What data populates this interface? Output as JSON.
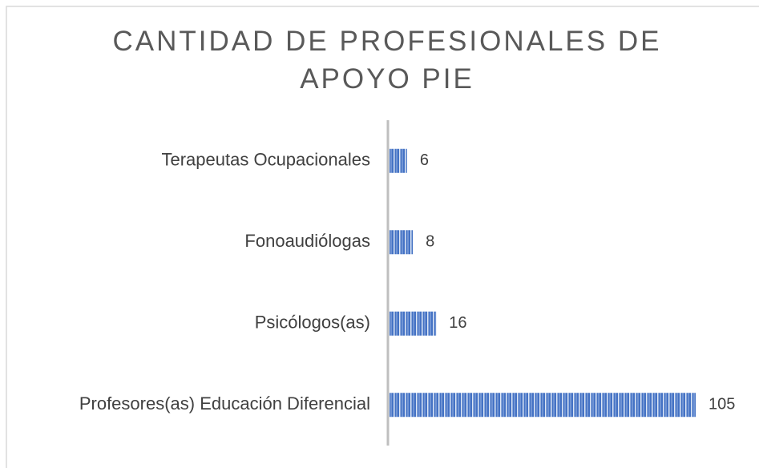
{
  "chart_data": {
    "type": "bar",
    "orientation": "horizontal",
    "title": "CANTIDAD DE PROFESIONALES DE APOYO PIE",
    "categories": [
      "Terapeutas Ocupacionales",
      "Fonoaudiólogas",
      "Psicólogos(as)",
      "Profesores(as) Educación Diferencial"
    ],
    "values": [
      6,
      8,
      16,
      105
    ],
    "color": "#4472c4"
  }
}
